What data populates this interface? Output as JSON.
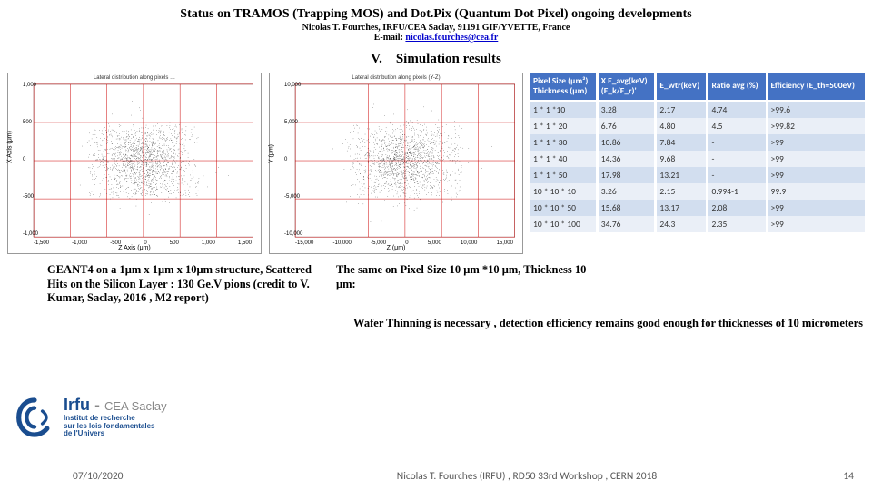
{
  "header": {
    "title": "Status on TRAMOS (Trapping MOS) and Dot.Pix (Quantum Dot Pixel) ongoing developments",
    "author": "Nicolas T. Fourches, IRFU/CEA Saclay, 91191 GIF/YVETTE, France",
    "email_prefix": "E-mail: ",
    "email": "nicolas.fourches@cea.fr"
  },
  "section": {
    "number": "V.",
    "title": "Simulation results"
  },
  "scatters": {
    "left": {
      "title": "Lateral distribution along pixels …",
      "ylabel": "X Axis (μm)",
      "xlabel": "Z Axis (μm)",
      "xlim": [
        -1500,
        1500
      ],
      "ylim": [
        -1200,
        1000
      ],
      "xticks": [
        "-1,500",
        "-1,000",
        "-500",
        "0",
        "500",
        "1,000",
        "1,500"
      ],
      "yticks": [
        "1,000",
        "500",
        "0",
        "-500",
        "-1,000"
      ],
      "n_points": 1600,
      "seed": 11,
      "sigma": 0.55,
      "marker_size": 0.5,
      "grid_color": "#cc0000",
      "point_color": "#000000",
      "background": "#ffffff"
    },
    "right": {
      "title": "Lateral distribution along pixels (Y-Z)",
      "ylabel": "Y (μm)",
      "xlabel": "Z (μm)",
      "xlim": [
        -15000,
        15000
      ],
      "ylim": [
        -12000,
        12000
      ],
      "xticks": [
        "-15,000",
        "-10,000",
        "-5,000",
        "0",
        "5,000",
        "10,000",
        "15,000"
      ],
      "yticks": [
        "10,000",
        "5,000",
        "0",
        "-5,000",
        "-10,000"
      ],
      "n_points": 1600,
      "seed": 29,
      "sigma": 0.55,
      "marker_size": 0.5,
      "grid_color": "#cc0000",
      "point_color": "#000000",
      "background": "#ffffff"
    }
  },
  "table": {
    "columns": [
      "Pixel Size (μm³)\nThickness (μm)",
      "X E_avg(keV)\n(E_k/E_r)'",
      "E_wtr(keV)",
      "Ratio avg (%)",
      "Efficiency (E_th=500eV)"
    ],
    "columns_short": [
      "Pixel Size (μm³) / Thickness (μm)",
      "X E_avg(keV) (E_k/E_r)'",
      "E_wtr(keV)",
      "Ratio avg (%)",
      "Efficiency (E_th=500eV)"
    ],
    "rows": [
      [
        "1 * 1 *10",
        "3.28",
        "2.17",
        "4.74",
        ">99.6"
      ],
      [
        "1 * 1 * 20",
        "6.76",
        "4.80",
        "4.5",
        ">99.82"
      ],
      [
        "1 * 1 * 30",
        "10.86",
        "7.84",
        "-",
        ">99"
      ],
      [
        "1 * 1 * 40",
        "14.36",
        "9.68",
        "-",
        ">99"
      ],
      [
        "1 * 1 * 50",
        "17.98",
        "13.21",
        "-",
        ">99"
      ],
      [
        "10 * 10 * 10",
        "3.26",
        "2.15",
        "0.994-1",
        "99.9"
      ],
      [
        "10 * 10 * 50",
        "15.68",
        "13.17",
        "2.08",
        ">99"
      ],
      [
        "10 * 10 * 100",
        "34.76",
        "24.3",
        "2.35",
        ">99"
      ]
    ],
    "header_bg": "#4472c4",
    "band_colors": [
      "#d2deef",
      "#eaeff7"
    ]
  },
  "captions": {
    "left": "GEANT4 on a 1μm x 1μm x 10μm structure, Scattered Hits on the Silicon Layer : 130 Ge.V pions (credit to V. Kumar, Saclay, 2016 , M2 report)",
    "right": "The same on Pixel Size 10 μm *10 μm, Thickness 10 μm:"
  },
  "conclusion": "Wafer Thinning is necessary , detection efficiency remains good enough for thicknesses of 10 micrometers",
  "logo": {
    "main": "Irfu",
    "separator": " - ",
    "secondary": "CEA Saclay",
    "subtitle": "Institut de recherche\nsur les lois fondamentales\nde l'Univers",
    "mark_color": "#1a4d8f"
  },
  "footer": {
    "date": "07/10/2020",
    "middle": "Nicolas T. Fourches (IRFU) , RD50 33rd Workshop , CERN 2018",
    "page": "14"
  }
}
